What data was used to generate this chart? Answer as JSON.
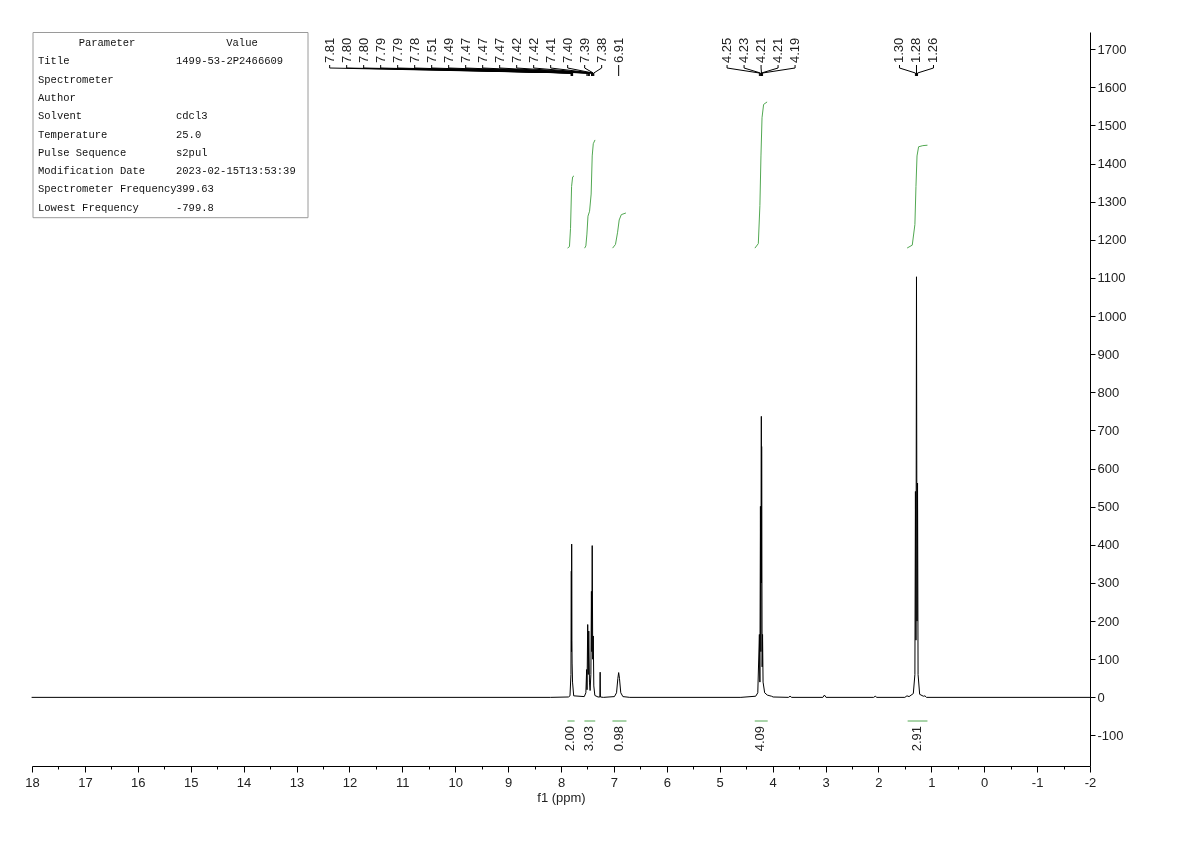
{
  "chart_data": {
    "type": "line",
    "xlabel": "f1 (ppm)",
    "xlim": [
      18,
      -2
    ],
    "ylim": [
      -180,
      1745
    ],
    "xticks": [
      18,
      {
        "value": 17.5,
        "label": null
      },
      17,
      {
        "value": 16.5,
        "label": null
      },
      16,
      {
        "value": 15.5,
        "label": null
      },
      15,
      {
        "value": 14.5,
        "label": null
      },
      14,
      {
        "value": 13.5,
        "label": null
      },
      13,
      {
        "value": 12.5,
        "label": null
      },
      12,
      {
        "value": 11.5,
        "label": null
      },
      11,
      {
        "value": 10.5,
        "label": null
      },
      10,
      {
        "value": 9.5,
        "label": null
      },
      9,
      {
        "value": 8.5,
        "label": null
      },
      8,
      {
        "value": 7.5,
        "label": null
      },
      7,
      {
        "value": 6.5,
        "label": null
      },
      6,
      {
        "value": 5.5,
        "label": null
      },
      5,
      {
        "value": 4.5,
        "label": null
      },
      4,
      {
        "value": 3.5,
        "label": null
      },
      3,
      {
        "value": 2.5,
        "label": null
      },
      2,
      {
        "value": 1.5,
        "label": null
      },
      1,
      {
        "value": 0.5,
        "label": null
      },
      0,
      {
        "value": -0.5,
        "label": null
      },
      -1,
      {
        "value": -1.5,
        "label": null
      },
      -2
    ],
    "yticks": [
      -100,
      0,
      100,
      200,
      300,
      400,
      500,
      600,
      700,
      800,
      900,
      1000,
      1100,
      1200,
      1300,
      1400,
      1500,
      1600,
      1700
    ],
    "series": [
      {
        "color": "#000000",
        "x": [
          18,
          8.2,
          7.86,
          7.83,
          7.812,
          7.805,
          7.801,
          7.798,
          7.794,
          7.79,
          7.782,
          7.76,
          7.56,
          7.53,
          7.515,
          7.508,
          7.495,
          7.485,
          7.475,
          7.462,
          7.45,
          7.435,
          7.425,
          7.418,
          7.41,
          7.4,
          7.39,
          7.38,
          7.36,
          7.3,
          7.265,
          7.26,
          7.255,
          7.2,
          6.99,
          6.95,
          6.925,
          6.91,
          6.895,
          6.87,
          6.83,
          6.7,
          4.6,
          4.32,
          4.28,
          4.25,
          4.24,
          4.23,
          4.222,
          4.213,
          4.21,
          4.207,
          4.198,
          4.19,
          4.18,
          4.15,
          4.1,
          4.05,
          4.02,
          3.99,
          3.7,
          3.67,
          3.64,
          3.05,
          3.02,
          2.99,
          2.09,
          2.06,
          2.03,
          1.5,
          1.46,
          1.42,
          1.34,
          1.31,
          1.3,
          1.29,
          1.28,
          1.27,
          1.26,
          1.25,
          1.22,
          1.15,
          1.12,
          1.09,
          -2
        ],
        "values": [
          0,
          0,
          1,
          4,
          60,
          331,
          120,
          402,
          150,
          90,
          40,
          4,
          2,
          12,
          73,
          20,
          191,
          60,
          174,
          40,
          18,
          60,
          278,
          120,
          398,
          100,
          161,
          30,
          5,
          1,
          1,
          66,
          1,
          0,
          2,
          12,
          50,
          65,
          50,
          12,
          2,
          0,
          0,
          3,
          12,
          165,
          40,
          501,
          120,
          737,
          300,
          658,
          80,
          165,
          40,
          12,
          6,
          4,
          3,
          1,
          0,
          3,
          0,
          0,
          6,
          0,
          0,
          3,
          0,
          0,
          4,
          2,
          10,
          60,
          540,
          150,
          1103,
          200,
          562,
          60,
          8,
          3,
          4,
          0,
          0
        ]
      },
      {
        "color": "#52a852",
        "x": [
          7.87,
          7.84,
          7.82,
          7.8,
          7.78,
          7.76
        ],
        "values": [
          1179,
          1182,
          1230,
          1340,
          1365,
          1367
        ]
      },
      {
        "color": "#52a852",
        "x": [
          7.55,
          7.53,
          7.51,
          7.49,
          7.46,
          7.43,
          7.41,
          7.39,
          7.36
        ],
        "values": [
          1179,
          1184,
          1215,
          1262,
          1275,
          1320,
          1420,
          1452,
          1461
        ]
      },
      {
        "color": "#52a852",
        "x": [
          7.02,
          6.97,
          6.93,
          6.9,
          6.86,
          6.78
        ],
        "values": [
          1179,
          1188,
          1220,
          1252,
          1266,
          1270
        ]
      },
      {
        "color": "#52a852",
        "x": [
          4.33,
          4.27,
          4.24,
          4.22,
          4.2,
          4.17,
          4.11
        ],
        "values": [
          1179,
          1190,
          1290,
          1420,
          1520,
          1555,
          1561
        ]
      },
      {
        "color": "#52a852",
        "x": [
          1.45,
          1.36,
          1.31,
          1.29,
          1.27,
          1.24,
          1.16,
          1.08
        ],
        "values": [
          1179,
          1186,
          1240,
          1340,
          1420,
          1444,
          1447,
          1448
        ]
      },
      {
        "color": "#52a852",
        "x": [
          7.87,
          7.75
        ],
        "values": [
          -62,
          -62
        ]
      },
      {
        "color": "#52a852",
        "x": [
          7.55,
          7.36
        ],
        "values": [
          -62,
          -62
        ]
      },
      {
        "color": "#52a852",
        "x": [
          7.02,
          6.77
        ],
        "values": [
          -62,
          -62
        ]
      },
      {
        "color": "#52a852",
        "x": [
          4.33,
          4.1
        ],
        "values": [
          -62,
          -62
        ]
      },
      {
        "color": "#52a852",
        "x": [
          1.44,
          1.08
        ],
        "values": [
          -62,
          -62
        ]
      }
    ],
    "annotations": [
      "Parameter",
      "Value",
      "Title",
      "1499-53-2P2466609",
      "Spectrometer",
      null,
      "Author",
      null,
      "Solvent",
      "cdcl3",
      "Temperature",
      "25.0",
      "Pulse Sequence",
      "s2pul",
      "Modification Date",
      "2023-02-15T13:53:39",
      "Spectrometer Frequency",
      "399.63",
      "Lowest Frequency",
      "-799.8",
      {
        "text": "7.81",
        "x": 7.81
      },
      {
        "text": "7.80",
        "x": 7.8
      },
      {
        "text": "7.80",
        "x": 7.8
      },
      {
        "text": "7.79",
        "x": 7.79
      },
      {
        "text": "7.79",
        "x": 7.79
      },
      {
        "text": "7.78",
        "x": 7.78
      },
      {
        "text": "7.51",
        "x": 7.51
      },
      {
        "text": "7.49",
        "x": 7.49
      },
      {
        "text": "7.47",
        "x": 7.47
      },
      {
        "text": "7.47",
        "x": 7.47
      },
      {
        "text": "7.47",
        "x": 7.47
      },
      {
        "text": "7.42",
        "x": 7.42
      },
      {
        "text": "7.42",
        "x": 7.42
      },
      {
        "text": "7.41",
        "x": 7.41
      },
      {
        "text": "7.40",
        "x": 7.4
      },
      {
        "text": "7.39",
        "x": 7.39
      },
      {
        "text": "7.38",
        "x": 7.38
      },
      {
        "text": "6.91",
        "x": 6.91
      },
      {
        "text": "4.25",
        "x": 4.25
      },
      {
        "text": "4.23",
        "x": 4.23
      },
      {
        "text": "4.21",
        "x": 4.21
      },
      {
        "text": "4.21",
        "x": 4.21
      },
      {
        "text": "4.19",
        "x": 4.19
      },
      {
        "text": "1.30",
        "x": 1.3
      },
      {
        "text": "1.28",
        "x": 1.28
      },
      {
        "text": "1.26",
        "x": 1.26
      },
      {
        "text": "2.00",
        "x": 7.83,
        "y": -62
      },
      {
        "text": "3.03",
        "x": 7.47,
        "y": -62
      },
      {
        "text": "0.98",
        "x": 6.9,
        "y": -62
      },
      {
        "text": "4.09",
        "x": 4.24,
        "y": -62
      },
      {
        "text": "2.91",
        "x": 1.27,
        "y": -62
      }
    ]
  }
}
